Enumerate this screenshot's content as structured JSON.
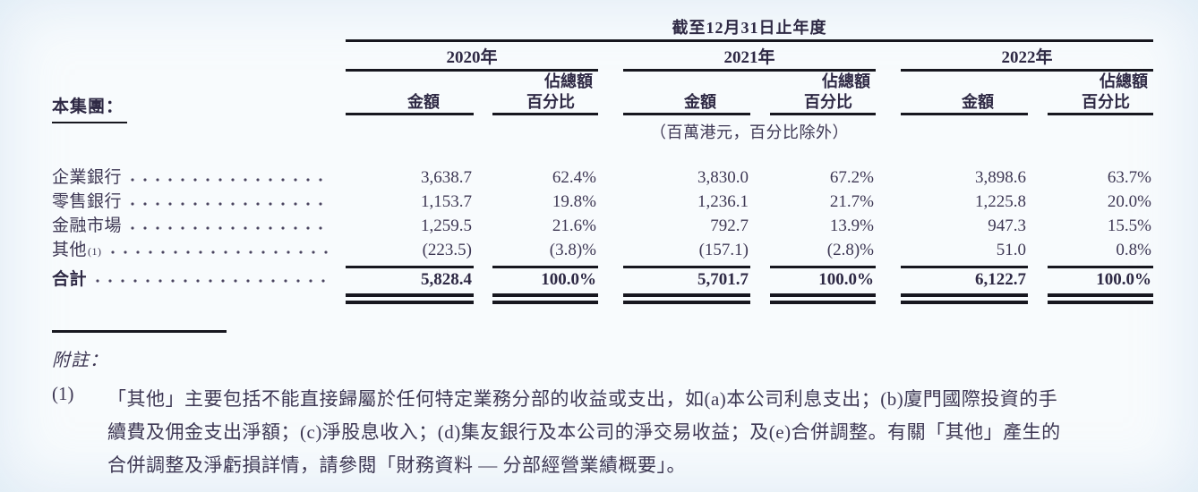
{
  "doc": {
    "period_header": "截至12月31日止年度",
    "group_label": "本集團：",
    "unit_note": "（百萬港元，百分比除外）",
    "years": [
      {
        "label": "2020年"
      },
      {
        "label": "2021年"
      },
      {
        "label": "2022年"
      }
    ],
    "col_amount": "金額",
    "col_share_line1": "佔總額",
    "col_share_line2": "百分比",
    "rows": [
      {
        "label": "企業銀行",
        "values": [
          "3,638.7",
          "62.4%",
          "3,830.0",
          "67.2%",
          "3,898.6",
          "63.7%"
        ]
      },
      {
        "label": "零售銀行",
        "values": [
          "1,153.7",
          "19.8%",
          "1,236.1",
          "21.7%",
          "1,225.8",
          "20.0%"
        ]
      },
      {
        "label": "金融市場",
        "values": [
          "1,259.5",
          "21.6%",
          "792.7",
          "13.9%",
          "947.3",
          "15.5%"
        ]
      },
      {
        "label": "其他",
        "sup": "(1)",
        "values": [
          "(223.5)",
          "(3.8)%",
          "(157.1)",
          "(2.8)%",
          "51.0",
          "0.8%"
        ]
      }
    ],
    "total": {
      "label": "合計",
      "values": [
        "5,828.4",
        "100.0%",
        "5,701.7",
        "100.0%",
        "6,122.7",
        "100.0%"
      ]
    },
    "notes_heading": "附註：",
    "footnote": {
      "marker": "(1)",
      "lines": [
        "「其他」主要包括不能直接歸屬於任何特定業務分部的收益或支出，如(a)本公司利息支出；(b)廈門國際投資的手",
        "續費及佣金支出淨額；(c)淨股息收入；(d)集友銀行及本公司的淨交易收益；及(e)合併調整。有關「其他」產生的",
        "合併調整及淨虧損詳情，請參閱「財務資料 — 分部經營業績概要」。"
      ]
    },
    "ink_color": "#3e3854",
    "rule_color": "#17171f"
  }
}
